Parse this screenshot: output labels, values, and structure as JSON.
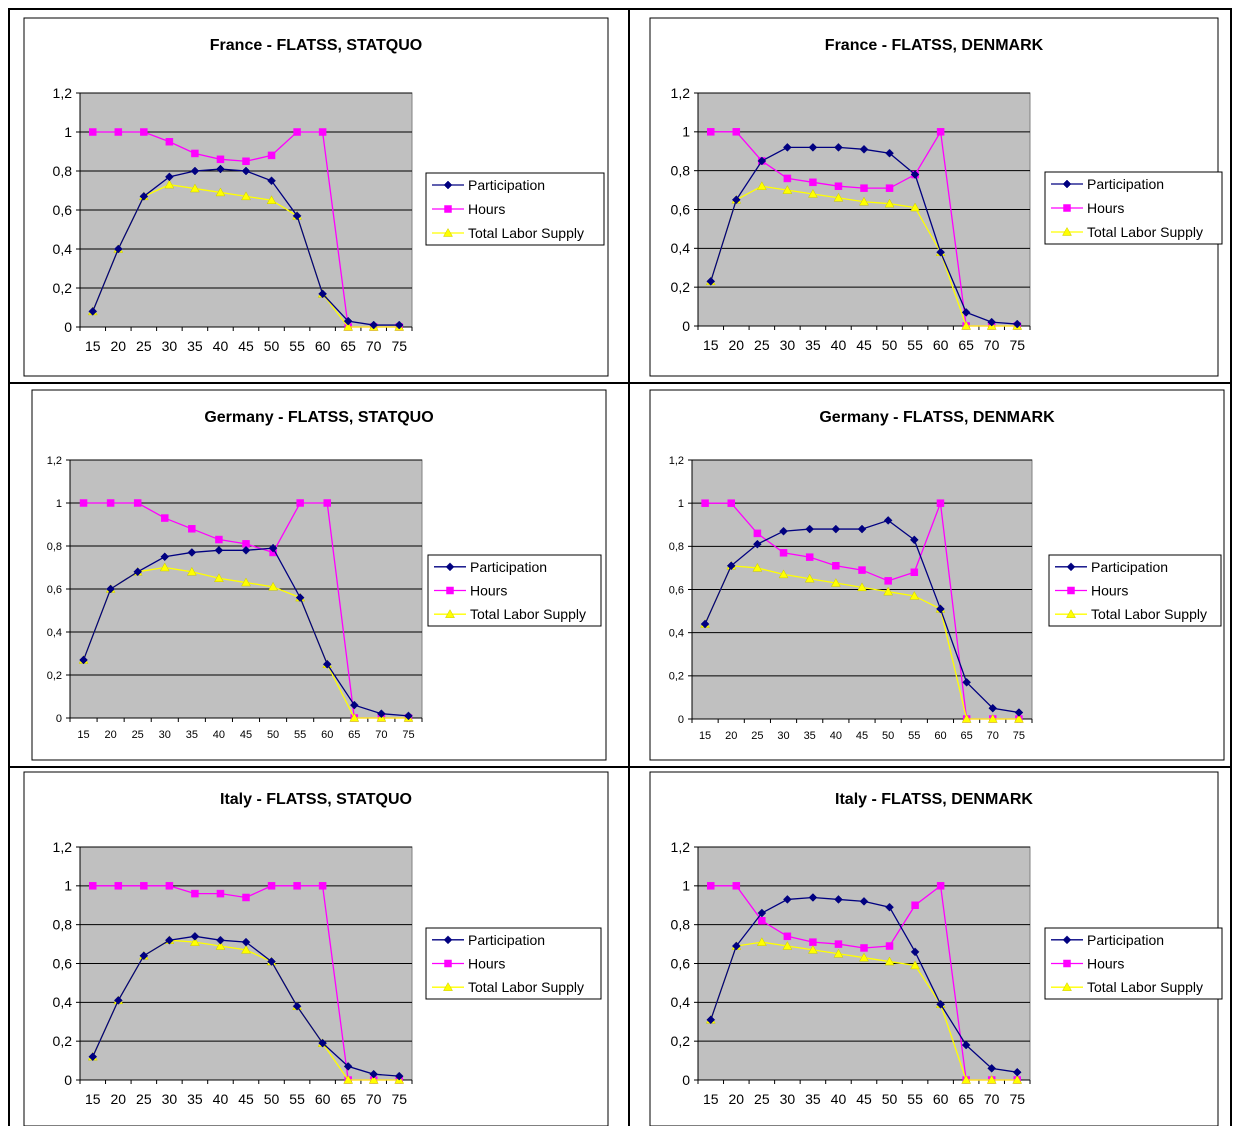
{
  "colors": {
    "plot_bg": "#c0c0c0",
    "participation": "#000080",
    "hours": "#ff00ff",
    "total_labor_supply": "#ffff00"
  },
  "legend": {
    "participation": "Participation",
    "hours": "Hours",
    "total_labor_supply": "Total Labor Supply"
  },
  "chart_data": [
    {
      "type": "line",
      "title": "France - FLATSS, STATQUO",
      "x": [
        15,
        20,
        25,
        30,
        35,
        40,
        45,
        50,
        55,
        60,
        65,
        70,
        75
      ],
      "ylim": [
        0,
        1.2
      ],
      "yticks": [
        "0",
        "0,2",
        "0,4",
        "0,6",
        "0,8",
        "1",
        "1,2"
      ],
      "grid": true,
      "legend_position": "right",
      "series": [
        {
          "name": "Participation",
          "marker": "diamond",
          "values": [
            0.08,
            0.4,
            0.67,
            0.77,
            0.8,
            0.81,
            0.8,
            0.75,
            0.57,
            0.17,
            0.03,
            0.01,
            0.01
          ]
        },
        {
          "name": "Hours",
          "marker": "square",
          "values": [
            1.0,
            1.0,
            1.0,
            0.95,
            0.89,
            0.86,
            0.85,
            0.88,
            1.0,
            1.0,
            0.0,
            0.0,
            0.0
          ]
        },
        {
          "name": "Total Labor Supply",
          "marker": "triangle",
          "values": [
            0.08,
            0.4,
            0.67,
            0.73,
            0.71,
            0.69,
            0.67,
            0.65,
            0.57,
            0.17,
            0.0,
            0.0,
            0.0
          ]
        }
      ]
    },
    {
      "type": "line",
      "title": "France - FLATSS, DENMARK",
      "x": [
        15,
        20,
        25,
        30,
        35,
        40,
        45,
        50,
        55,
        60,
        65,
        70,
        75
      ],
      "ylim": [
        0,
        1.2
      ],
      "yticks": [
        "0",
        "0,2",
        "0,4",
        "0,6",
        "0,8",
        "1",
        "1,2"
      ],
      "grid": true,
      "legend_position": "right",
      "series": [
        {
          "name": "Participation",
          "marker": "diamond",
          "values": [
            0.23,
            0.65,
            0.85,
            0.92,
            0.92,
            0.92,
            0.91,
            0.89,
            0.78,
            0.38,
            0.07,
            0.02,
            0.01
          ]
        },
        {
          "name": "Hours",
          "marker": "square",
          "values": [
            1.0,
            1.0,
            0.85,
            0.76,
            0.74,
            0.72,
            0.71,
            0.71,
            0.78,
            1.0,
            0.0,
            0.0,
            0.0
          ]
        },
        {
          "name": "Total Labor Supply",
          "marker": "triangle",
          "values": [
            0.23,
            0.65,
            0.72,
            0.7,
            0.68,
            0.66,
            0.64,
            0.63,
            0.61,
            0.38,
            0.0,
            0.0,
            0.0
          ]
        }
      ]
    },
    {
      "type": "line",
      "title": "Germany - FLATSS, STATQUO",
      "x": [
        15,
        20,
        25,
        30,
        35,
        40,
        45,
        50,
        55,
        60,
        65,
        70,
        75
      ],
      "ylim": [
        0,
        1.2
      ],
      "yticks": [
        "0",
        "0,2",
        "0,4",
        "0,6",
        "0,8",
        "1",
        "1,2"
      ],
      "grid": true,
      "legend_position": "right",
      "series": [
        {
          "name": "Participation",
          "marker": "diamond",
          "values": [
            0.27,
            0.6,
            0.68,
            0.75,
            0.77,
            0.78,
            0.78,
            0.79,
            0.56,
            0.25,
            0.06,
            0.02,
            0.01
          ]
        },
        {
          "name": "Hours",
          "marker": "square",
          "values": [
            1.0,
            1.0,
            1.0,
            0.93,
            0.88,
            0.83,
            0.81,
            0.77,
            1.0,
            1.0,
            0.0,
            0.0,
            0.0
          ]
        },
        {
          "name": "Total Labor Supply",
          "marker": "triangle",
          "values": [
            0.27,
            0.6,
            0.68,
            0.7,
            0.68,
            0.65,
            0.63,
            0.61,
            0.56,
            0.25,
            0.0,
            0.0,
            0.0
          ]
        }
      ]
    },
    {
      "type": "line",
      "title": "Germany - FLATSS, DENMARK",
      "x": [
        15,
        20,
        25,
        30,
        35,
        40,
        45,
        50,
        55,
        60,
        65,
        70,
        75
      ],
      "ylim": [
        0,
        1.2
      ],
      "yticks": [
        "0",
        "0,2",
        "0,4",
        "0,6",
        "0,8",
        "1",
        "1,2"
      ],
      "grid": true,
      "legend_position": "right",
      "series": [
        {
          "name": "Participation",
          "marker": "diamond",
          "values": [
            0.44,
            0.71,
            0.81,
            0.87,
            0.88,
            0.88,
            0.88,
            0.92,
            0.83,
            0.51,
            0.17,
            0.05,
            0.03
          ]
        },
        {
          "name": "Hours",
          "marker": "square",
          "values": [
            1.0,
            1.0,
            0.86,
            0.77,
            0.75,
            0.71,
            0.69,
            0.64,
            0.68,
            1.0,
            0.0,
            0.0,
            0.0
          ]
        },
        {
          "name": "Total Labor Supply",
          "marker": "triangle",
          "values": [
            0.44,
            0.71,
            0.7,
            0.67,
            0.65,
            0.63,
            0.61,
            0.59,
            0.57,
            0.51,
            0.0,
            0.0,
            0.0
          ]
        }
      ]
    },
    {
      "type": "line",
      "title": "Italy - FLATSS, STATQUO",
      "x": [
        15,
        20,
        25,
        30,
        35,
        40,
        45,
        50,
        55,
        60,
        65,
        70,
        75
      ],
      "ylim": [
        0,
        1.2
      ],
      "yticks": [
        "0",
        "0,2",
        "0,4",
        "0,6",
        "0,8",
        "1",
        "1,2"
      ],
      "grid": true,
      "legend_position": "right",
      "series": [
        {
          "name": "Participation",
          "marker": "diamond",
          "values": [
            0.12,
            0.41,
            0.64,
            0.72,
            0.74,
            0.72,
            0.71,
            0.61,
            0.38,
            0.19,
            0.07,
            0.03,
            0.02
          ]
        },
        {
          "name": "Hours",
          "marker": "square",
          "values": [
            1.0,
            1.0,
            1.0,
            1.0,
            0.96,
            0.96,
            0.94,
            1.0,
            1.0,
            1.0,
            0.0,
            0.0,
            0.0
          ]
        },
        {
          "name": "Total Labor Supply",
          "marker": "triangle",
          "values": [
            0.12,
            0.41,
            0.64,
            0.72,
            0.71,
            0.69,
            0.67,
            0.61,
            0.38,
            0.19,
            0.0,
            0.0,
            0.0
          ]
        }
      ]
    },
    {
      "type": "line",
      "title": "Italy - FLATSS, DENMARK",
      "x": [
        15,
        20,
        25,
        30,
        35,
        40,
        45,
        50,
        55,
        60,
        65,
        70,
        75
      ],
      "ylim": [
        0,
        1.2
      ],
      "yticks": [
        "0",
        "0,2",
        "0,4",
        "0,6",
        "0,8",
        "1",
        "1,2"
      ],
      "grid": true,
      "legend_position": "right",
      "series": [
        {
          "name": "Participation",
          "marker": "diamond",
          "values": [
            0.31,
            0.69,
            0.86,
            0.93,
            0.94,
            0.93,
            0.92,
            0.89,
            0.66,
            0.39,
            0.18,
            0.06,
            0.04
          ]
        },
        {
          "name": "Hours",
          "marker": "square",
          "values": [
            1.0,
            1.0,
            0.82,
            0.74,
            0.71,
            0.7,
            0.68,
            0.69,
            0.9,
            1.0,
            0.0,
            0.0,
            0.0
          ]
        },
        {
          "name": "Total Labor Supply",
          "marker": "triangle",
          "values": [
            0.31,
            0.69,
            0.71,
            0.69,
            0.67,
            0.65,
            0.63,
            0.61,
            0.59,
            0.39,
            0.0,
            0.0,
            0.0
          ]
        }
      ]
    }
  ]
}
